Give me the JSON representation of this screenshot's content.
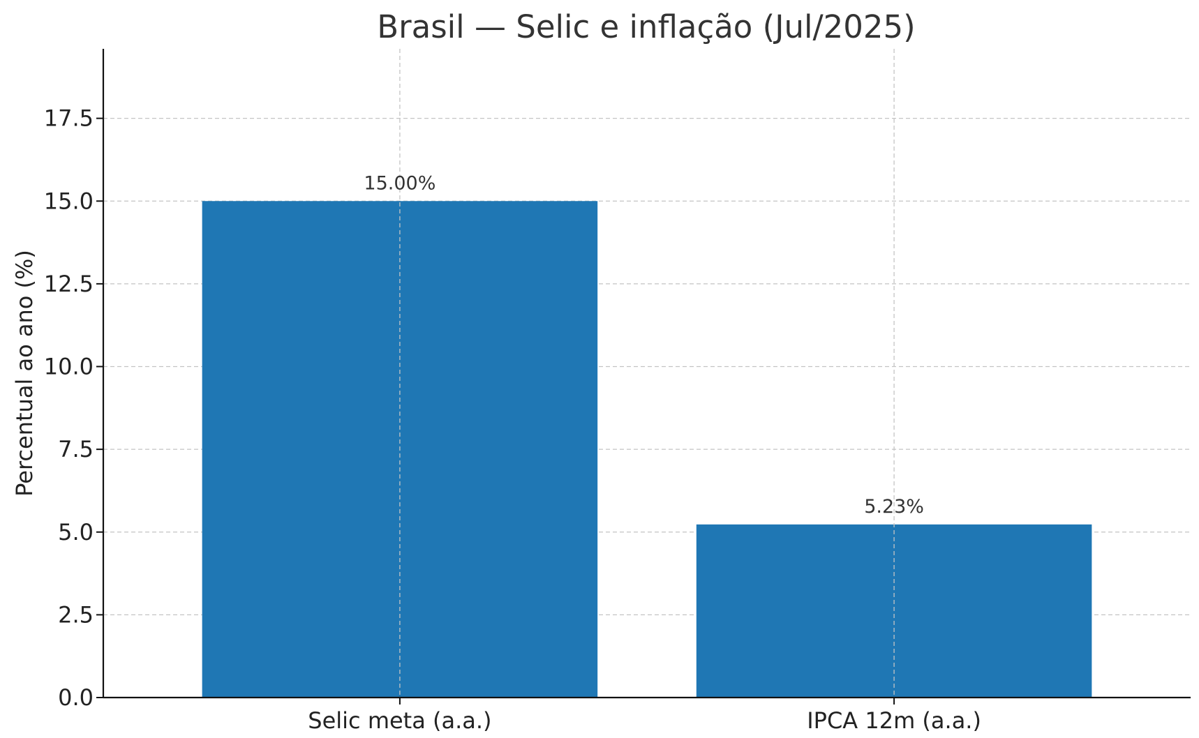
{
  "chart_data": {
    "type": "bar",
    "title": "Brasil — Selic e inflação (Jul/2025)",
    "xlabel": "",
    "ylabel": "Percentual ao ano (%)",
    "categories": [
      "Selic meta (a.a.)",
      "IPCA 12m (a.a.)"
    ],
    "values": [
      15.0,
      5.23
    ],
    "data_labels": [
      "15.00%",
      "5.23%"
    ],
    "ylim": [
      0,
      19.6
    ],
    "yticks": [
      0.0,
      2.5,
      5.0,
      7.5,
      10.0,
      12.5,
      15.0,
      17.5
    ],
    "ytick_labels": [
      "0.0",
      "2.5",
      "5.0",
      "7.5",
      "10.0",
      "12.5",
      "15.0",
      "17.5"
    ],
    "grid": true,
    "bar_color": "#1f77b4"
  }
}
